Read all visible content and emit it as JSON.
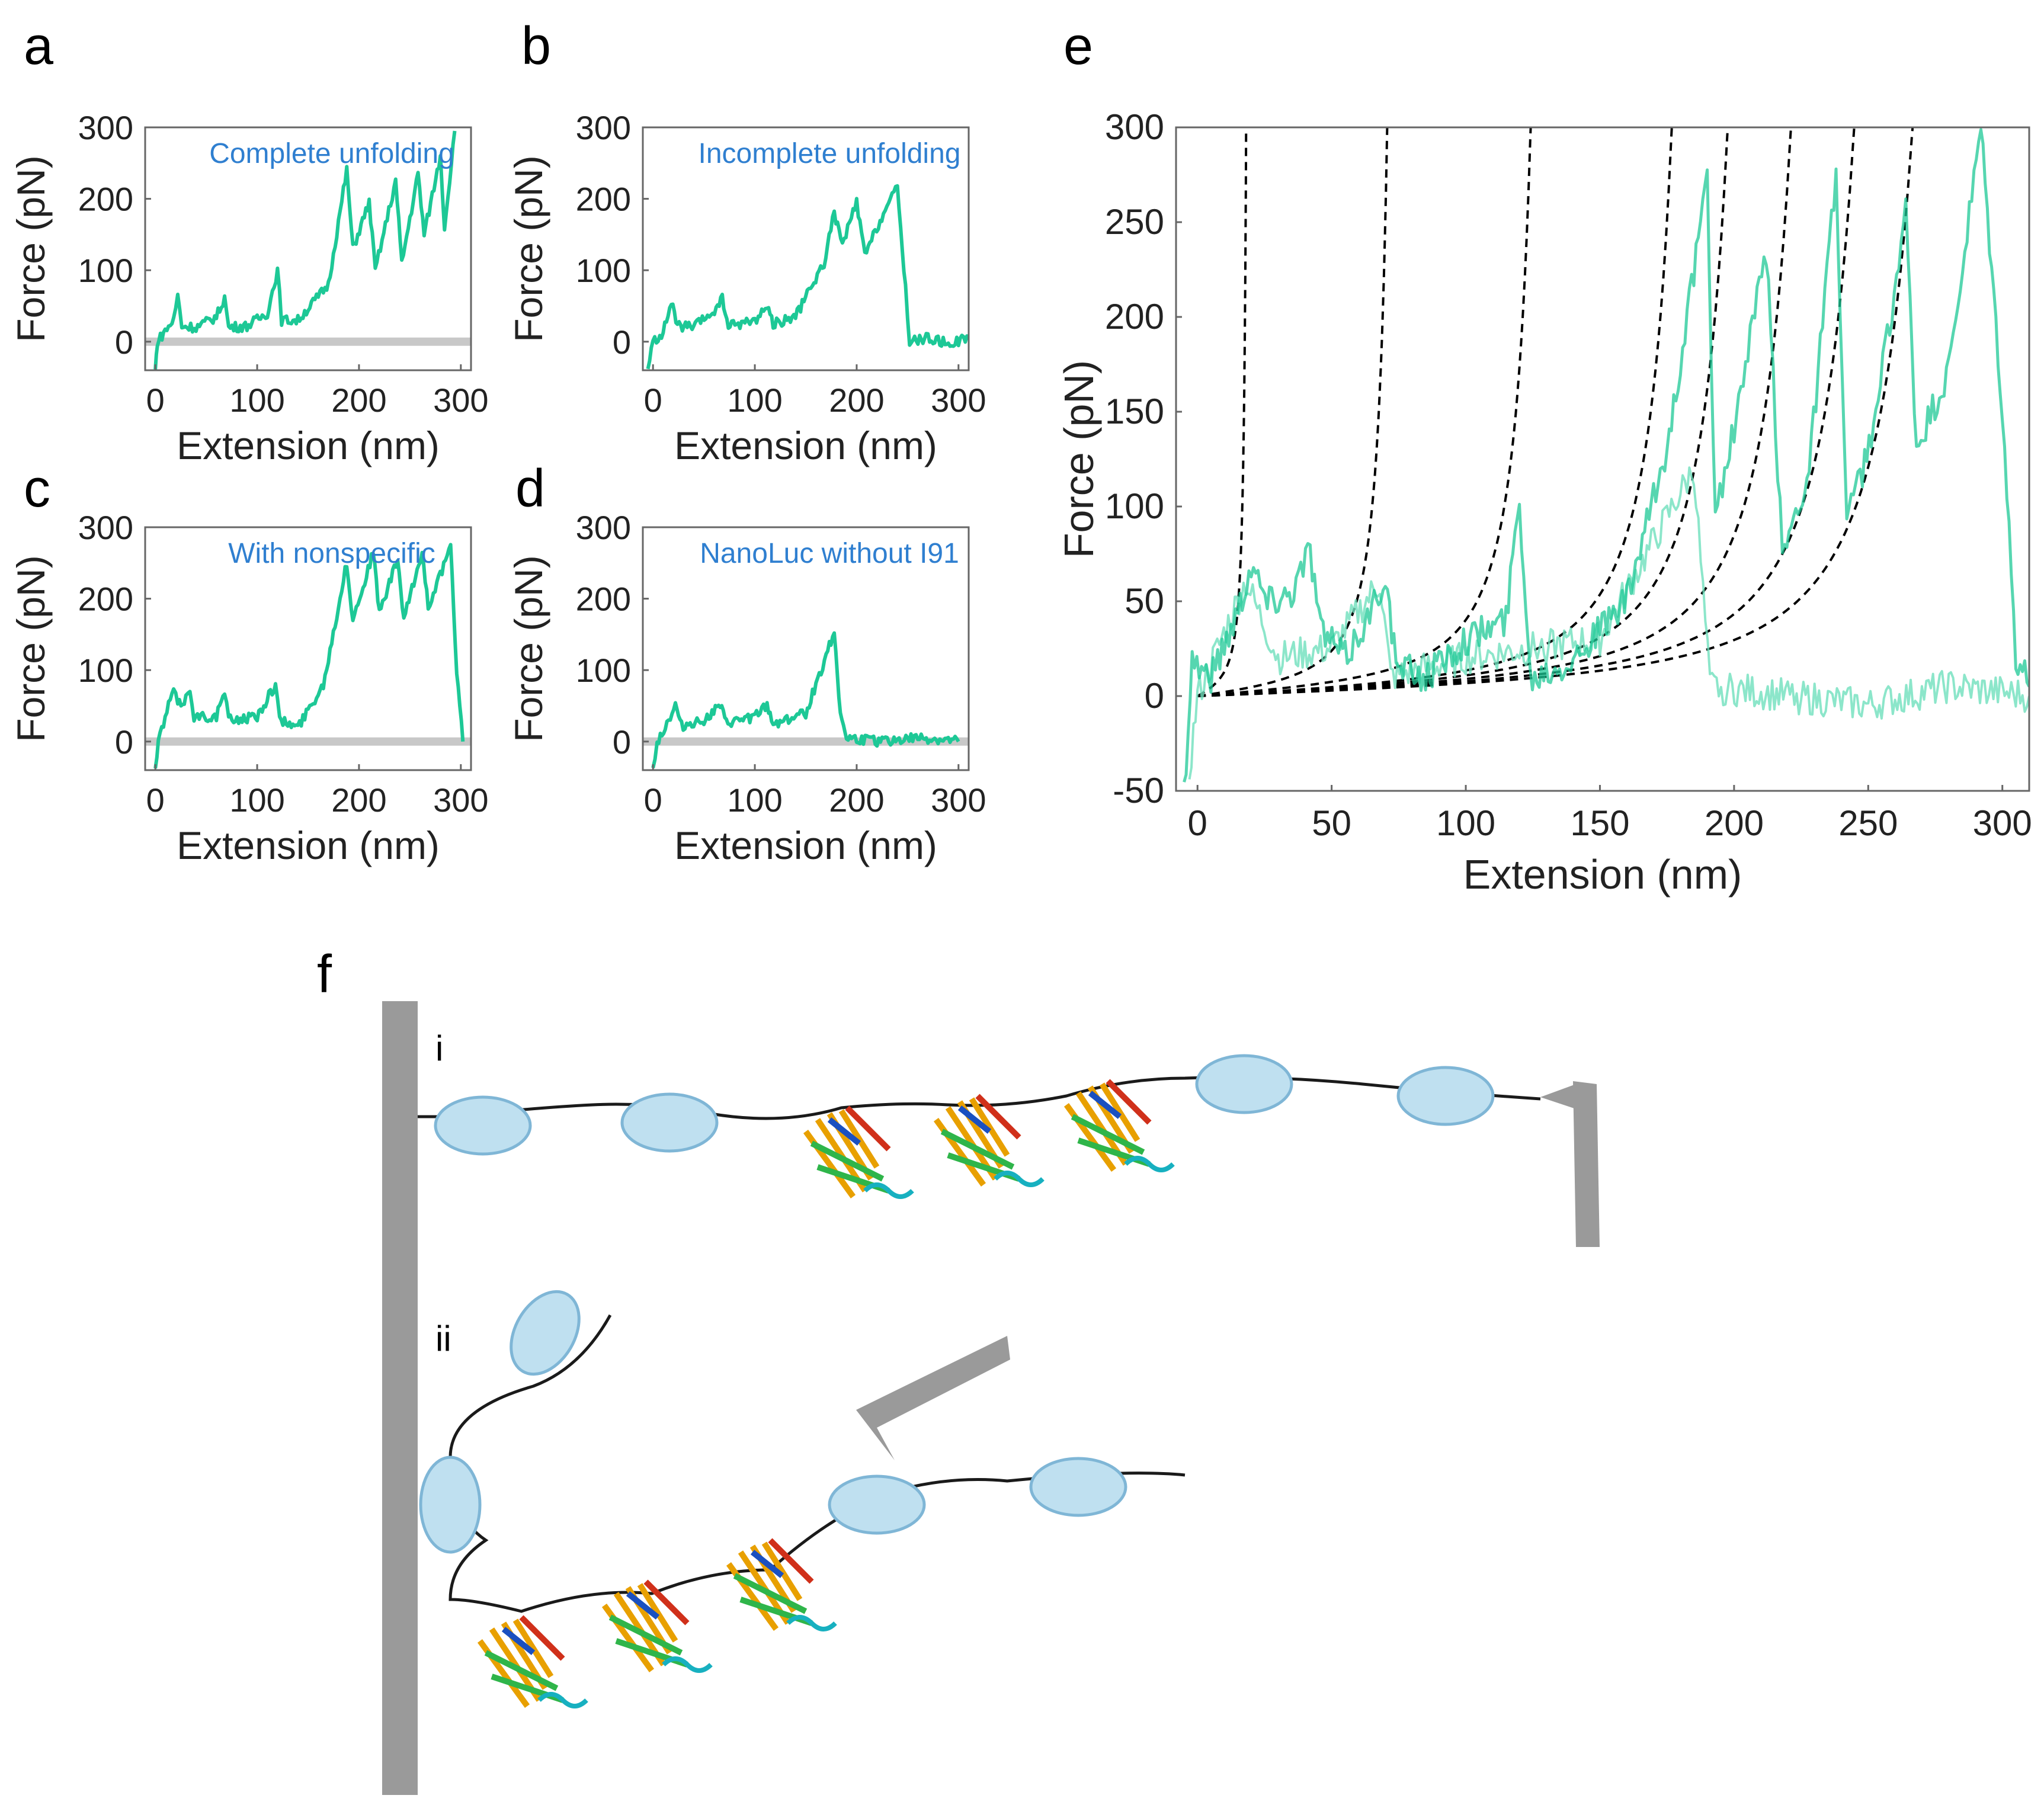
{
  "panels": {
    "a": "a",
    "b": "b",
    "c": "c",
    "d": "d",
    "e": "e",
    "f": "f"
  },
  "colors": {
    "trace": "#1dc896",
    "trace_light": "#6fe0bd",
    "baseline": "#c8c8c8",
    "annotation": "#2f7fd0",
    "fit": "#000000",
    "surface": "#9a9a9a"
  },
  "chart_data": [
    {
      "id": "a",
      "type": "line",
      "annotation": "Complete unfolding",
      "xlabel": "Extension (nm)",
      "ylabel": "Force (pN)",
      "xlim": [
        -10,
        310
      ],
      "ylim": [
        -40,
        300
      ],
      "xticks": [
        0,
        100,
        200,
        300
      ],
      "yticks": [
        0,
        100,
        200,
        300
      ],
      "baseline": true,
      "trace_points": [
        [
          0,
          -40
        ],
        [
          2,
          0
        ],
        [
          8,
          12
        ],
        [
          18,
          30
        ],
        [
          22,
          65
        ],
        [
          26,
          22
        ],
        [
          40,
          20
        ],
        [
          60,
          35
        ],
        [
          68,
          62
        ],
        [
          72,
          20
        ],
        [
          90,
          22
        ],
        [
          110,
          40
        ],
        [
          120,
          100
        ],
        [
          124,
          30
        ],
        [
          140,
          30
        ],
        [
          170,
          80
        ],
        [
          188,
          240
        ],
        [
          194,
          130
        ],
        [
          210,
          195
        ],
        [
          216,
          100
        ],
        [
          236,
          225
        ],
        [
          242,
          110
        ],
        [
          258,
          235
        ],
        [
          264,
          150
        ],
        [
          280,
          260
        ],
        [
          284,
          160
        ],
        [
          294,
          295
        ]
      ]
    },
    {
      "id": "b",
      "type": "line",
      "annotation": "Incomplete unfolding",
      "xlabel": "Extension (nm)",
      "ylabel": "Force (pN)",
      "xlim": [
        -10,
        310
      ],
      "ylim": [
        -40,
        300
      ],
      "xticks": [
        0,
        100,
        200,
        300
      ],
      "yticks": [
        0,
        100,
        200,
        300
      ],
      "baseline": false,
      "trace_points": [
        [
          -5,
          -40
        ],
        [
          0,
          0
        ],
        [
          10,
          12
        ],
        [
          18,
          55
        ],
        [
          24,
          22
        ],
        [
          40,
          20
        ],
        [
          62,
          45
        ],
        [
          68,
          60
        ],
        [
          74,
          22
        ],
        [
          100,
          30
        ],
        [
          112,
          50
        ],
        [
          118,
          25
        ],
        [
          140,
          35
        ],
        [
          168,
          110
        ],
        [
          178,
          180
        ],
        [
          186,
          135
        ],
        [
          200,
          195
        ],
        [
          208,
          120
        ],
        [
          228,
          185
        ],
        [
          240,
          215
        ],
        [
          248,
          75
        ],
        [
          252,
          0
        ],
        [
          270,
          5
        ],
        [
          290,
          -3
        ],
        [
          310,
          5
        ]
      ]
    },
    {
      "id": "c",
      "type": "line",
      "annotation": "With nonspecific",
      "xlabel": "Extension (nm)",
      "ylabel": "Force (pN)",
      "xlim": [
        -10,
        310
      ],
      "ylim": [
        -40,
        300
      ],
      "xticks": [
        0,
        100,
        200,
        300
      ],
      "yticks": [
        0,
        100,
        200,
        300
      ],
      "baseline": true,
      "trace_points": [
        [
          0,
          -40
        ],
        [
          3,
          0
        ],
        [
          8,
          25
        ],
        [
          18,
          75
        ],
        [
          22,
          50
        ],
        [
          30,
          60
        ],
        [
          34,
          75
        ],
        [
          38,
          35
        ],
        [
          60,
          35
        ],
        [
          68,
          70
        ],
        [
          72,
          30
        ],
        [
          100,
          35
        ],
        [
          118,
          80
        ],
        [
          122,
          30
        ],
        [
          140,
          20
        ],
        [
          165,
          80
        ],
        [
          188,
          250
        ],
        [
          194,
          170
        ],
        [
          214,
          265
        ],
        [
          220,
          180
        ],
        [
          238,
          255
        ],
        [
          244,
          170
        ],
        [
          262,
          265
        ],
        [
          268,
          190
        ],
        [
          290,
          270
        ],
        [
          296,
          100
        ],
        [
          302,
          0
        ]
      ]
    },
    {
      "id": "d",
      "type": "line",
      "annotation": "NanoLuc without I91",
      "xlabel": "Extension (nm)",
      "ylabel": "Force (pN)",
      "xlim": [
        -10,
        310
      ],
      "ylim": [
        -40,
        300
      ],
      "xticks": [
        0,
        100,
        200,
        300
      ],
      "yticks": [
        0,
        100,
        200,
        300
      ],
      "baseline": true,
      "trace_points": [
        [
          0,
          -40
        ],
        [
          4,
          0
        ],
        [
          12,
          20
        ],
        [
          22,
          50
        ],
        [
          28,
          22
        ],
        [
          50,
          30
        ],
        [
          66,
          50
        ],
        [
          72,
          25
        ],
        [
          100,
          35
        ],
        [
          112,
          50
        ],
        [
          118,
          25
        ],
        [
          150,
          40
        ],
        [
          170,
          120
        ],
        [
          178,
          155
        ],
        [
          184,
          40
        ],
        [
          190,
          5
        ],
        [
          220,
          0
        ],
        [
          260,
          5
        ],
        [
          300,
          0
        ]
      ]
    },
    {
      "id": "e",
      "type": "line",
      "xlabel": "Extension (nm)",
      "ylabel": "Force (pN)",
      "xlim": [
        -8,
        310
      ],
      "ylim": [
        -50,
        300
      ],
      "xticks": [
        0,
        50,
        100,
        150,
        200,
        250,
        300
      ],
      "yticks": [
        -50,
        0,
        50,
        100,
        150,
        200,
        250,
        300
      ],
      "wlc_contour_lengths": [
        20,
        78,
        137,
        195,
        218,
        244,
        270,
        294
      ],
      "trace_points": [
        [
          -5,
          -50
        ],
        [
          -2,
          20
        ],
        [
          5,
          10
        ],
        [
          15,
          45
        ],
        [
          20,
          70
        ],
        [
          26,
          50
        ],
        [
          35,
          55
        ],
        [
          42,
          78
        ],
        [
          46,
          35
        ],
        [
          55,
          20
        ],
        [
          65,
          45
        ],
        [
          70,
          65
        ],
        [
          74,
          15
        ],
        [
          85,
          10
        ],
        [
          100,
          30
        ],
        [
          115,
          40
        ],
        [
          120,
          105
        ],
        [
          124,
          10
        ],
        [
          140,
          20
        ],
        [
          160,
          50
        ],
        [
          175,
          130
        ],
        [
          190,
          270
        ],
        [
          193,
          95
        ],
        [
          200,
          140
        ],
        [
          212,
          235
        ],
        [
          218,
          75
        ],
        [
          228,
          120
        ],
        [
          238,
          275
        ],
        [
          242,
          90
        ],
        [
          252,
          140
        ],
        [
          264,
          255
        ],
        [
          268,
          130
        ],
        [
          280,
          170
        ],
        [
          292,
          298
        ],
        [
          300,
          150
        ],
        [
          305,
          20
        ],
        [
          310,
          5
        ]
      ],
      "trace_points_2": [
        [
          -3,
          -40
        ],
        [
          0,
          0
        ],
        [
          18,
          60
        ],
        [
          30,
          20
        ],
        [
          50,
          25
        ],
        [
          68,
          60
        ],
        [
          72,
          10
        ],
        [
          100,
          20
        ],
        [
          150,
          30
        ],
        [
          185,
          120
        ],
        [
          191,
          5
        ],
        [
          220,
          0
        ],
        [
          250,
          -5
        ],
        [
          280,
          5
        ],
        [
          310,
          0
        ]
      ]
    }
  ],
  "schematic": {
    "label_i": "i",
    "label_ii": "ii"
  }
}
